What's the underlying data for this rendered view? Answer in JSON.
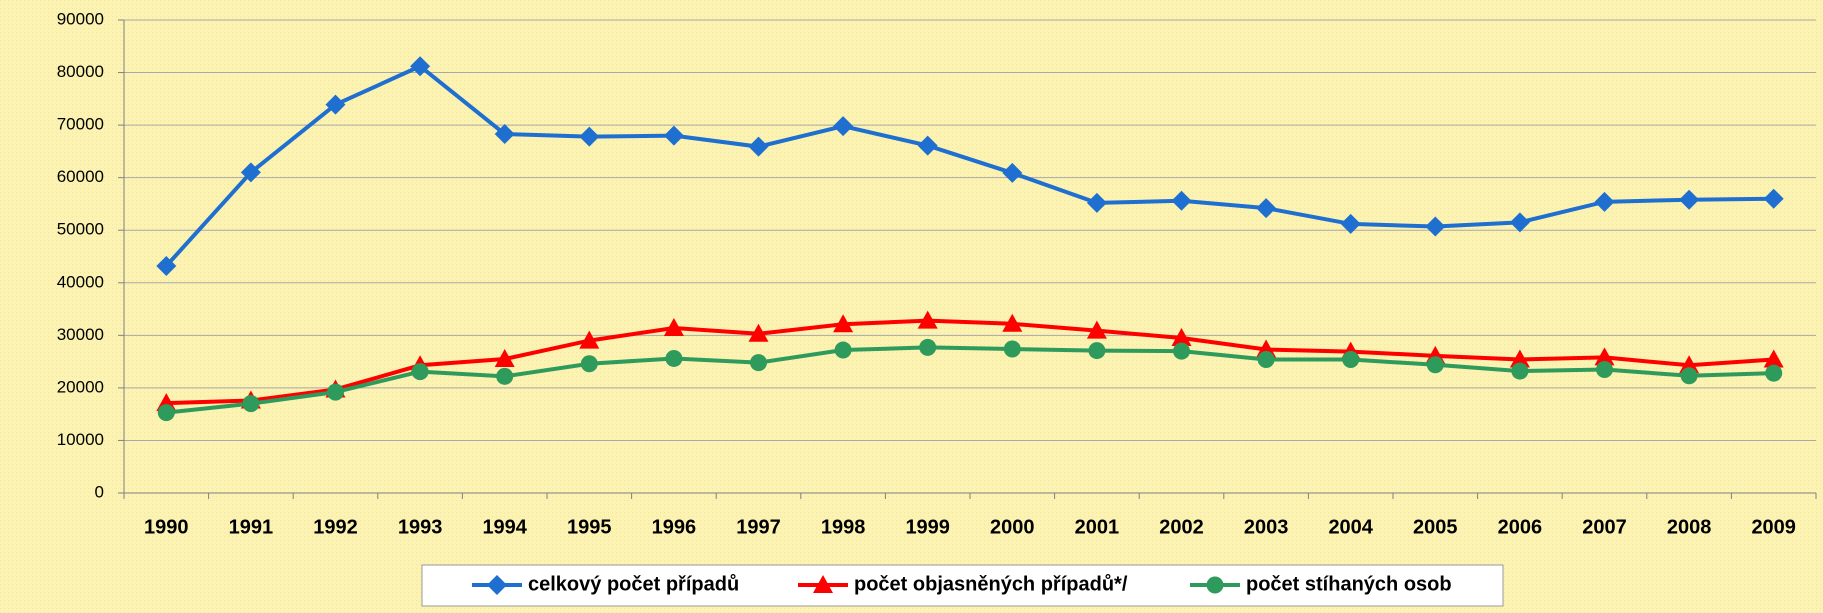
{
  "chart_data": {
    "type": "line",
    "categories": [
      "1990",
      "1991",
      "1992",
      "1993",
      "1994",
      "1995",
      "1996",
      "1997",
      "1998",
      "1999",
      "2000",
      "2001",
      "2002",
      "2003",
      "2004",
      "2005",
      "2006",
      "2007",
      "2008",
      "2009"
    ],
    "series": [
      {
        "name": "celkový počet případů",
        "color": "#1f6fd1",
        "marker": "diamond",
        "values": [
          43200,
          61000,
          73900,
          81200,
          68300,
          67800,
          68000,
          65900,
          69800,
          66100,
          60900,
          55200,
          55600,
          54200,
          51200,
          50700,
          51500,
          55400,
          55800,
          56000
        ]
      },
      {
        "name": "počet objasněných případů*/",
        "color": "#ff0000",
        "marker": "triangle",
        "values": [
          17100,
          17600,
          19700,
          24300,
          25500,
          29000,
          31400,
          30300,
          32100,
          32800,
          32200,
          30900,
          29500,
          27300,
          26900,
          26100,
          25400,
          25800,
          24300,
          25400
        ]
      },
      {
        "name": "počet stíhaných osob",
        "color": "#2e9a5c",
        "marker": "circle",
        "values": [
          15300,
          17000,
          19200,
          23100,
          22200,
          24600,
          25600,
          24800,
          27200,
          27700,
          27400,
          27100,
          27000,
          25400,
          25400,
          24400,
          23200,
          23500,
          22300,
          22800
        ]
      }
    ],
    "ylim": [
      0,
      90000
    ],
    "yticks": [
      0,
      10000,
      20000,
      30000,
      40000,
      50000,
      60000,
      70000,
      80000,
      90000
    ],
    "grid": true,
    "legend": "bottom"
  }
}
